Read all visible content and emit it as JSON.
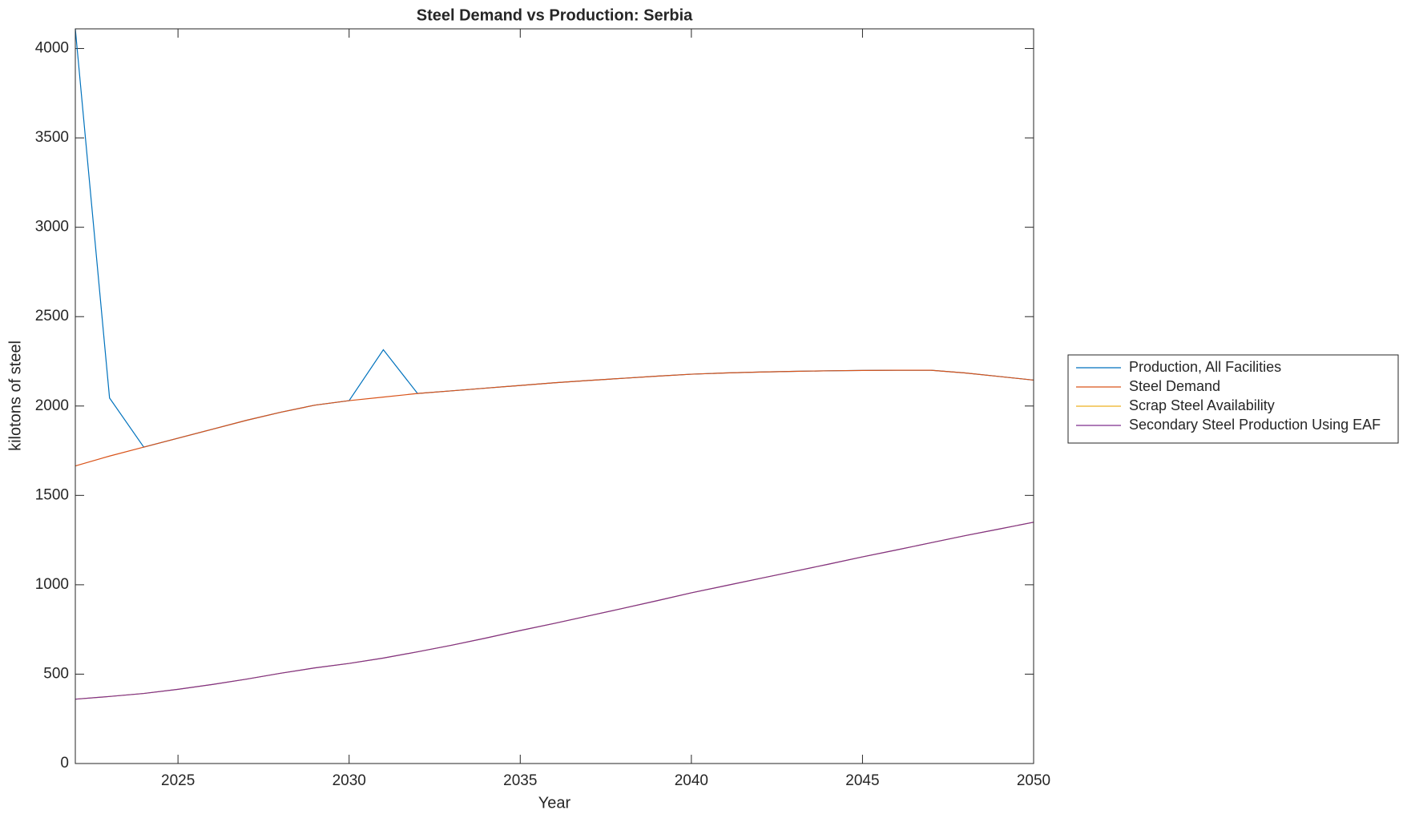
{
  "chart_data": {
    "type": "line",
    "title": "Steel Demand vs Production: Serbia",
    "x_label": "Year",
    "y_label": "kilotons of steel",
    "x": [
      2022,
      2023,
      2024,
      2025,
      2026,
      2027,
      2028,
      2029,
      2030,
      2031,
      2032,
      2033,
      2034,
      2035,
      2036,
      2037,
      2038,
      2039,
      2040,
      2041,
      2042,
      2043,
      2044,
      2045,
      2046,
      2047,
      2048,
      2049,
      2050
    ],
    "series": [
      {
        "name": "Production, All Facilities",
        "color": "#0072BD",
        "values": [
          4110,
          2045,
          1770,
          1820,
          1870,
          1920,
          1965,
          2005,
          2030,
          2315,
          2070,
          2085,
          2100,
          2115,
          2130,
          2143,
          2155,
          2167,
          2178,
          2185,
          2190,
          2194,
          2197,
          2199,
          2200,
          2200,
          2185,
          2165,
          2145
        ]
      },
      {
        "name": "Steel Demand",
        "color": "#D95319",
        "values": [
          1665,
          1720,
          1770,
          1820,
          1870,
          1920,
          1965,
          2005,
          2030,
          2050,
          2070,
          2085,
          2100,
          2115,
          2130,
          2143,
          2155,
          2167,
          2178,
          2185,
          2190,
          2194,
          2197,
          2199,
          2200,
          2200,
          2185,
          2165,
          2145
        ]
      },
      {
        "name": "Scrap Steel Availability",
        "color": "#EDB120",
        "values": [
          360,
          375,
          392,
          415,
          442,
          472,
          505,
          535,
          560,
          590,
          625,
          662,
          702,
          744,
          784,
          826,
          868,
          911,
          955,
          995,
          1035,
          1075,
          1115,
          1156,
          1195,
          1235,
          1275,
          1312,
          1350
        ]
      },
      {
        "name": "Secondary Steel Production Using EAF",
        "color": "#7E2F8E",
        "values": [
          360,
          375,
          392,
          415,
          442,
          472,
          505,
          535,
          560,
          590,
          625,
          662,
          702,
          744,
          784,
          826,
          868,
          911,
          955,
          995,
          1035,
          1075,
          1115,
          1156,
          1195,
          1235,
          1275,
          1312,
          1350
        ]
      }
    ],
    "xlim": [
      2022,
      2050
    ],
    "xticks": [
      2025,
      2030,
      2035,
      2040,
      2045,
      2050
    ],
    "ylim": [
      0,
      4110
    ],
    "yticks": [
      0,
      500,
      1000,
      1500,
      2000,
      2500,
      3000,
      3500,
      4000
    ],
    "legend": "outside-right"
  }
}
